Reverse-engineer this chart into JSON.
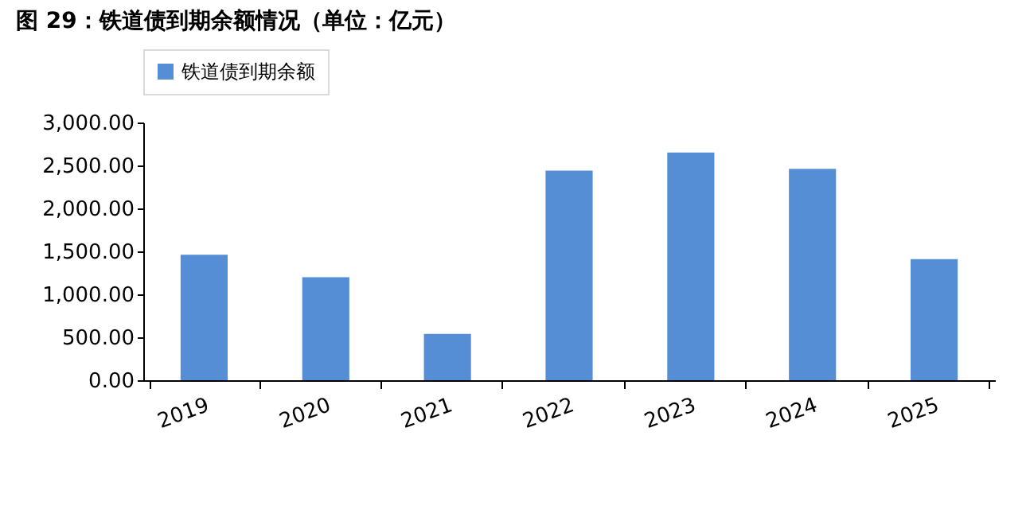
{
  "chart_data": {
    "type": "bar",
    "title": "图 29：铁道债到期余额情况（单位：亿元）",
    "categories": [
      "2019",
      "2020",
      "2021",
      "2022",
      "2023",
      "2024",
      "2025"
    ],
    "series": [
      {
        "name": "铁道债到期余额",
        "color": "#558ed5",
        "values": [
          1460,
          1200,
          540,
          2440,
          2650,
          2460,
          1410
        ]
      }
    ],
    "ylim": [
      0,
      3000
    ],
    "yticks": [
      {
        "value": 0,
        "label": "0.00"
      },
      {
        "value": 500,
        "label": "500.00"
      },
      {
        "value": 1000,
        "label": "1,000.00"
      },
      {
        "value": 1500,
        "label": "1,500.00"
      },
      {
        "value": 2000,
        "label": "2,000.00"
      },
      {
        "value": 2500,
        "label": "2,500.00"
      },
      {
        "value": 3000,
        "label": "3,000.00"
      }
    ],
    "grid": false,
    "legend": "top"
  }
}
